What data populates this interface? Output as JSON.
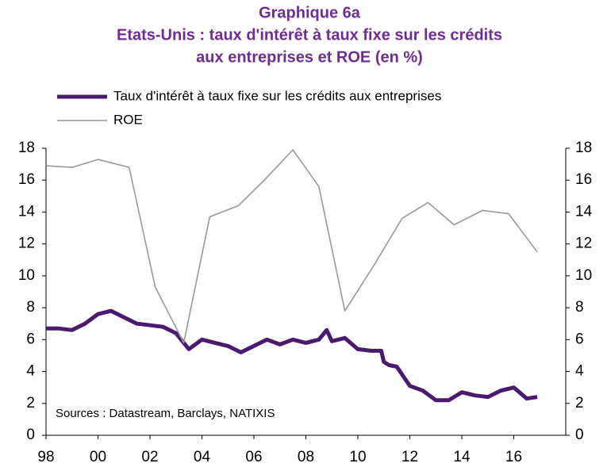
{
  "chart_data": {
    "type": "line",
    "title": [
      "Graphique 6a",
      "Etats-Unis : taux d'intérêt à taux fixe sur les crédits",
      "aux entreprises et ROE (en %)"
    ],
    "annotation": "Sources : Datastream, Barclays, NATIXIS",
    "xlim": [
      1998,
      2018
    ],
    "xticks": [
      {
        "value": 1998,
        "label": "98"
      },
      {
        "value": 2000,
        "label": "00"
      },
      {
        "value": 2002,
        "label": "02"
      },
      {
        "value": 2004,
        "label": "04"
      },
      {
        "value": 2006,
        "label": "06"
      },
      {
        "value": 2008,
        "label": "08"
      },
      {
        "value": 2010,
        "label": "10"
      },
      {
        "value": 2012,
        "label": "12"
      },
      {
        "value": 2014,
        "label": "14"
      },
      {
        "value": 2016,
        "label": "16"
      }
    ],
    "ylim": [
      0,
      18
    ],
    "yticks": [
      0,
      2,
      4,
      6,
      8,
      10,
      12,
      14,
      16,
      18
    ],
    "y2lim": [
      0,
      18
    ],
    "y2ticks": [
      0,
      2,
      4,
      6,
      8,
      10,
      12,
      14,
      16,
      18
    ],
    "series": [
      {
        "name": "Taux d'intérêt à taux fixe sur les crédits aux entreprises",
        "color": "#4b1a6e",
        "width": 5,
        "x": [
          1998,
          1998.5,
          1999,
          1999.5,
          2000,
          2000.5,
          2001,
          2001.5,
          2002,
          2002.5,
          2003,
          2003.3,
          2003.5,
          2004,
          2004.5,
          2005,
          2005.5,
          2006,
          2006.5,
          2007,
          2007.5,
          2008,
          2008.5,
          2008.8,
          2009,
          2009.5,
          2010,
          2010.5,
          2010.9,
          2011,
          2011.2,
          2011.5,
          2012,
          2012.5,
          2013,
          2013.5,
          2014,
          2014.5,
          2015,
          2015.5,
          2016,
          2016.5,
          2016.9
        ],
        "values": [
          6.7,
          6.7,
          6.6,
          7.0,
          7.6,
          7.8,
          7.4,
          7.0,
          6.9,
          6.8,
          6.4,
          5.8,
          5.4,
          6.0,
          5.8,
          5.6,
          5.2,
          5.6,
          6.0,
          5.7,
          6.0,
          5.8,
          6.0,
          6.6,
          5.9,
          6.1,
          5.4,
          5.3,
          5.3,
          4.6,
          4.4,
          4.3,
          3.1,
          2.8,
          2.2,
          2.2,
          2.7,
          2.5,
          2.4,
          2.8,
          3.0,
          2.3,
          2.4
        ]
      },
      {
        "name": "ROE",
        "color": "#999999",
        "width": 1.6,
        "axis": "y2",
        "x": [
          1998,
          1999,
          2000,
          2001.2,
          2002.2,
          2003.3,
          2004.3,
          2005.4,
          2006.4,
          2007.5,
          2008.5,
          2009.5,
          2010.6,
          2011.7,
          2012.7,
          2013.7,
          2014.8,
          2015.8,
          2016.9
        ],
        "values": [
          16.9,
          16.8,
          17.3,
          16.8,
          9.3,
          5.8,
          13.7,
          14.4,
          16.0,
          17.9,
          15.6,
          7.8,
          10.6,
          13.6,
          14.6,
          13.2,
          14.1,
          13.9,
          11.5
        ]
      }
    ]
  }
}
